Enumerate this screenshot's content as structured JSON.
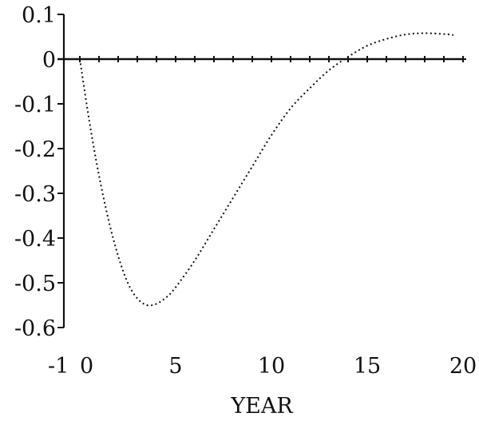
{
  "chart_data": {
    "type": "line",
    "title": "",
    "xlabel": "YEAR",
    "ylabel": "",
    "xlim": [
      -1,
      20
    ],
    "ylim": [
      -0.6,
      0.1
    ],
    "x_ticks": [
      -1,
      0,
      5,
      10,
      15,
      20
    ],
    "y_ticks": [
      0.1,
      0,
      -0.1,
      -0.2,
      -0.3,
      -0.4,
      -0.5,
      -0.6
    ],
    "x_tick_labels": [
      "-1",
      "0",
      "5",
      "10",
      "15",
      "20"
    ],
    "y_tick_labels": [
      "0.1",
      "0",
      "-0.1",
      "-0.2",
      "-0.3",
      "-0.4",
      "-0.5",
      "-0.6"
    ],
    "legend": "none",
    "grid": false,
    "series": [
      {
        "values": [
          {
            "x": 0,
            "y": 0
          },
          {
            "x": 0.5,
            "y": -0.14
          },
          {
            "x": 1,
            "y": -0.26
          },
          {
            "x": 1.5,
            "y": -0.36
          },
          {
            "x": 2,
            "y": -0.44
          },
          {
            "x": 2.5,
            "y": -0.5
          },
          {
            "x": 3,
            "y": -0.535
          },
          {
            "x": 3.5,
            "y": -0.55
          },
          {
            "x": 4,
            "y": -0.547
          },
          {
            "x": 4.5,
            "y": -0.533
          },
          {
            "x": 5,
            "y": -0.51
          },
          {
            "x": 6,
            "y": -0.45
          },
          {
            "x": 7,
            "y": -0.38
          },
          {
            "x": 8,
            "y": -0.31
          },
          {
            "x": 9,
            "y": -0.24
          },
          {
            "x": 10,
            "y": -0.17
          },
          {
            "x": 11,
            "y": -0.11
          },
          {
            "x": 12,
            "y": -0.065
          },
          {
            "x": 13,
            "y": -0.025
          },
          {
            "x": 14,
            "y": 0.005
          },
          {
            "x": 15,
            "y": 0.03
          },
          {
            "x": 16,
            "y": 0.045
          },
          {
            "x": 17,
            "y": 0.055
          },
          {
            "x": 18,
            "y": 0.058
          },
          {
            "x": 19,
            "y": 0.056
          },
          {
            "x": 19.5,
            "y": 0.054
          }
        ]
      },
      {
        "marker": "plus",
        "values": [
          {
            "x": 0,
            "y": 0
          },
          {
            "x": 1,
            "y": 0
          },
          {
            "x": 2,
            "y": 0
          },
          {
            "x": 3,
            "y": 0
          },
          {
            "x": 4,
            "y": 0
          },
          {
            "x": 5,
            "y": 0
          },
          {
            "x": 6,
            "y": 0
          },
          {
            "x": 7,
            "y": 0
          },
          {
            "x": 8,
            "y": 0
          },
          {
            "x": 9,
            "y": 0
          },
          {
            "x": 10,
            "y": 0
          },
          {
            "x": 11,
            "y": 0
          },
          {
            "x": 12,
            "y": 0
          },
          {
            "x": 13,
            "y": 0
          },
          {
            "x": 14,
            "y": 0
          },
          {
            "x": 15,
            "y": 0
          },
          {
            "x": 16,
            "y": 0
          },
          {
            "x": 17,
            "y": 0
          },
          {
            "x": 18,
            "y": 0
          },
          {
            "x": 19,
            "y": 0
          },
          {
            "x": 20,
            "y": 0
          }
        ]
      }
    ]
  }
}
